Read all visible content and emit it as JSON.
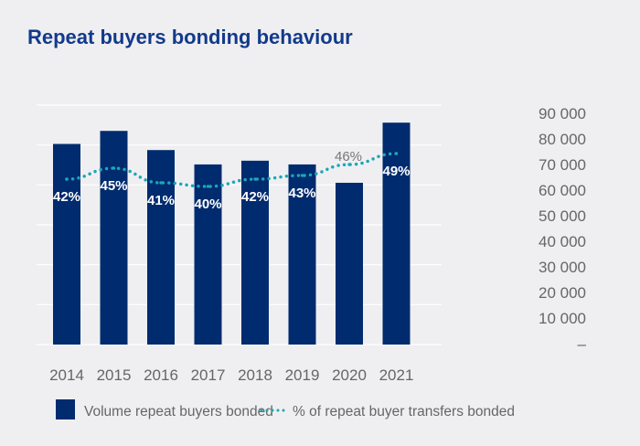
{
  "chart_data": {
    "type": "bar",
    "title": "Repeat buyers bonding behaviour",
    "categories": [
      "2014",
      "2015",
      "2016",
      "2017",
      "2018",
      "2019",
      "2020",
      "2021"
    ],
    "series": [
      {
        "name": "Volume repeat buyers bonded",
        "type": "bar",
        "axis": "right",
        "color": "#002b6e",
        "values": [
          75400,
          80300,
          73100,
          67700,
          69100,
          67700,
          60800,
          83400
        ]
      },
      {
        "name": "% of repeat buyer transfers bonded",
        "type": "line",
        "style": "dotted",
        "color": "#1ba6b8",
        "values": [
          42,
          45,
          41,
          40,
          42,
          43,
          46,
          49
        ],
        "labels": [
          "42%",
          "45%",
          "41%",
          "40%",
          "42%",
          "43%",
          "46%",
          "49%"
        ]
      }
    ],
    "y_right": {
      "ylim": [
        0,
        90000
      ],
      "ticks": [
        "90 000",
        "80 000",
        "70 000",
        "60 000",
        "50 000",
        "40 000",
        "30 000",
        "20 000",
        "10 000",
        "–"
      ]
    },
    "grid": true,
    "legend_position": "bottom-left",
    "colors": {
      "background": "#efeff1",
      "title": "#123a8c",
      "text": "#6b6b6b",
      "grid": "#ffffff"
    }
  }
}
